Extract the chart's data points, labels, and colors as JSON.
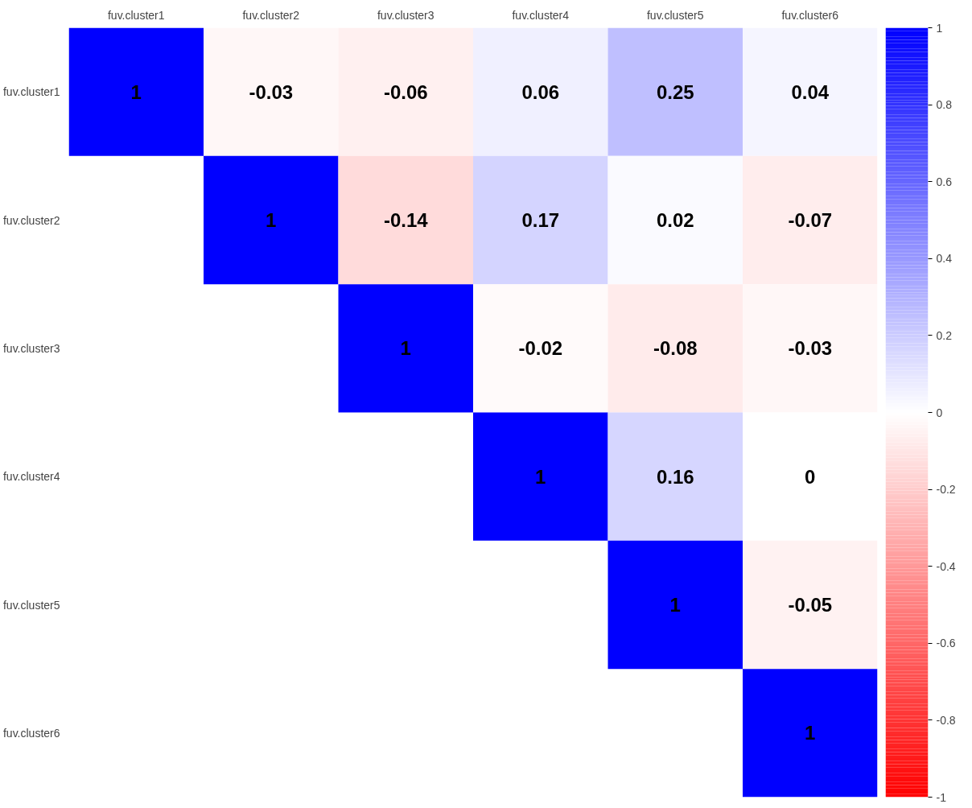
{
  "chart_data": {
    "type": "heatmap",
    "categories": [
      "fuv.cluster1",
      "fuv.cluster2",
      "fuv.cluster3",
      "fuv.cluster4",
      "fuv.cluster5",
      "fuv.cluster6"
    ],
    "y_categories": [
      "fuv.cluster1",
      "fuv.cluster2",
      "fuv.cluster3",
      "fuv.cluster4",
      "fuv.cluster5",
      "fuv.cluster6"
    ],
    "cells": [
      [
        1,
        -0.03,
        -0.06,
        0.06,
        0.25,
        0.04
      ],
      [
        null,
        1,
        -0.14,
        0.17,
        0.02,
        -0.07
      ],
      [
        null,
        null,
        1,
        -0.02,
        -0.08,
        -0.03
      ],
      [
        null,
        null,
        null,
        1,
        0.16,
        0
      ],
      [
        null,
        null,
        null,
        null,
        1,
        -0.05
      ],
      [
        null,
        null,
        null,
        null,
        null,
        1
      ]
    ],
    "clim": [
      -1,
      1
    ],
    "cticks": [
      -1,
      -0.8,
      -0.6,
      -0.4,
      -0.2,
      0,
      0.2,
      0.4,
      0.6,
      0.8,
      1
    ],
    "colors": [
      "#ff0000",
      "#ffffff",
      "#0000ff"
    ],
    "data_labels": true
  }
}
